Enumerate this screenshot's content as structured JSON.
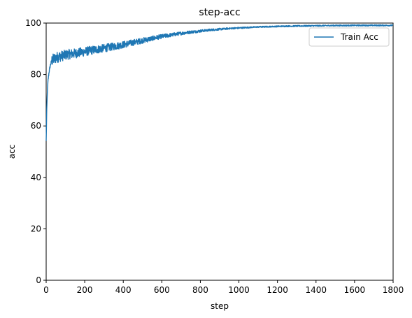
{
  "chart_data": {
    "type": "line",
    "title": "step-acc",
    "xlabel": "step",
    "ylabel": "acc",
    "xlim": [
      0,
      1800
    ],
    "ylim": [
      0,
      100
    ],
    "xticks": [
      0,
      200,
      400,
      600,
      800,
      1000,
      1200,
      1400,
      1600,
      1800
    ],
    "yticks": [
      0,
      20,
      40,
      60,
      80,
      100
    ],
    "grid": false,
    "legend_position": "top-right",
    "series": [
      {
        "name": "Train Acc",
        "color": "#1f77b4",
        "x": [
          0,
          3,
          6,
          10,
          15,
          20,
          25,
          30,
          40,
          50,
          60,
          80,
          100,
          120,
          150,
          180,
          200,
          250,
          300,
          350,
          400,
          450,
          500,
          550,
          600,
          650,
          700,
          750,
          800,
          850,
          900,
          950,
          1000,
          1050,
          1100,
          1150,
          1200,
          1250,
          1300,
          1350,
          1400,
          1450,
          1500,
          1550,
          1600,
          1650,
          1700,
          1750,
          1800
        ],
        "values": [
          54,
          66,
          73,
          78,
          81,
          83,
          84.5,
          85.5,
          86,
          86.5,
          86.8,
          87.2,
          87.6,
          87.9,
          88.2,
          88.6,
          88.9,
          89.6,
          90.2,
          90.9,
          91.6,
          92.4,
          93.2,
          94,
          94.8,
          95.4,
          96,
          96.5,
          96.9,
          97.3,
          97.6,
          97.9,
          98.1,
          98.3,
          98.5,
          98.6,
          98.7,
          98.8,
          98.85,
          98.9,
          98.95,
          99,
          99.05,
          99.05,
          99.1,
          99.1,
          99.1,
          99.1,
          99.1
        ]
      }
    ]
  }
}
